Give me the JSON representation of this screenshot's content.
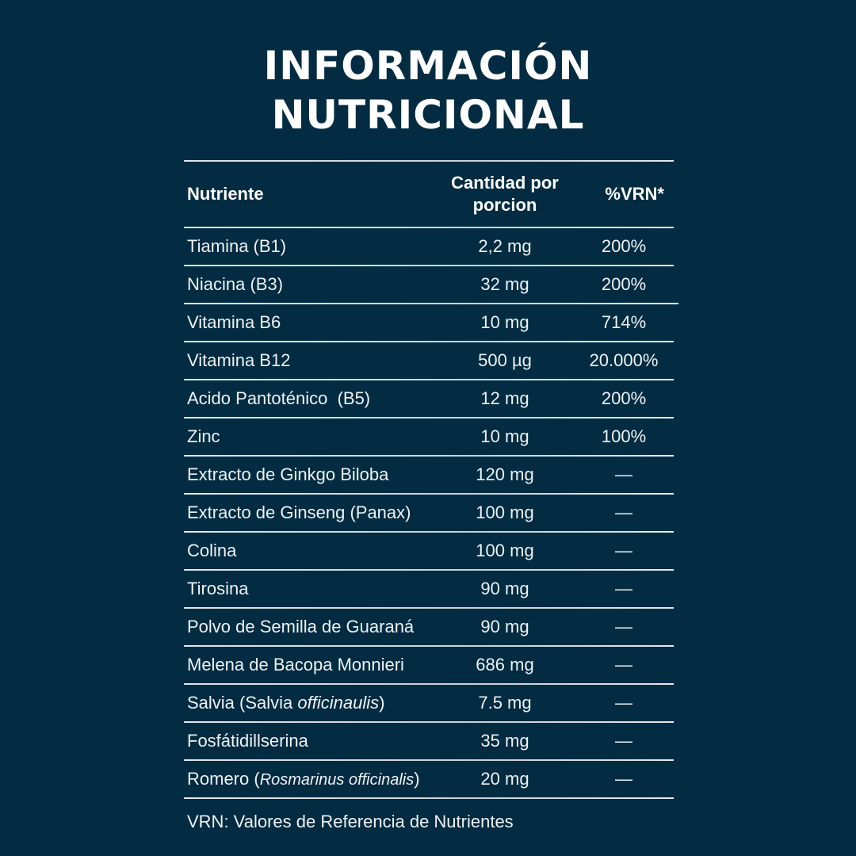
{
  "title": {
    "line1": "INFORMACIÓN",
    "line2": "NUTRICIONAL"
  },
  "table": {
    "headers": {
      "nutrient": "Nutriente",
      "amount_line1": "Cantidad por",
      "amount_line2": "porcion",
      "vrn": "%VRN*"
    },
    "rows": [
      {
        "nutrient": "Tiamina (B1)",
        "amount": "2,2 mg",
        "vrn": "200%"
      },
      {
        "nutrient": "Niacina (B3)",
        "amount": "32 mg",
        "vrn": "200%"
      },
      {
        "nutrient": "Vitamina B6",
        "amount": "10 mg",
        "vrn": "714%"
      },
      {
        "nutrient": "Vitamina B12",
        "amount": "500 µg",
        "vrn": "20.000%"
      },
      {
        "nutrient": "Acido Pantoténico  (B5)",
        "amount": "12 mg",
        "vrn": "200%"
      },
      {
        "nutrient": "Zinc",
        "amount": "10 mg",
        "vrn": "100%"
      },
      {
        "nutrient": "Extracto de Ginkgo Biloba",
        "amount": "120 mg",
        "vrn": "—"
      },
      {
        "nutrient": "Extracto de Ginseng (Panax)",
        "amount": "100 mg",
        "vrn": "—"
      },
      {
        "nutrient": "Colina",
        "amount": "100 mg",
        "vrn": "—"
      },
      {
        "nutrient": "Tirosina",
        "amount": "90 mg",
        "vrn": "—"
      },
      {
        "nutrient": "Polvo de Semilla de Guaraná",
        "amount": "90 mg",
        "vrn": "—"
      },
      {
        "nutrient": "Melena de Bacopa Monnieri",
        "amount": "686 mg",
        "vrn": "—"
      },
      {
        "nutrient_prefix": "Salvia (Salvia ",
        "nutrient_italic": "officinaulis",
        "nutrient_suffix": ")",
        "amount": "7.5 mg",
        "vrn": "—"
      },
      {
        "nutrient": "Fosfátidillserina",
        "amount": "35 mg",
        "vrn": "—"
      },
      {
        "nutrient_prefix": "Romero (",
        "nutrient_italic": "Rosmarinus officinalis",
        "nutrient_suffix": ")",
        "amount": "20 mg",
        "vrn": "—"
      }
    ]
  },
  "footnote": "VRN: Valores de Referencia de Nutrientes",
  "colors": {
    "background": "#032c42",
    "text": "#ffffff",
    "rule": "#dfe6ea"
  }
}
